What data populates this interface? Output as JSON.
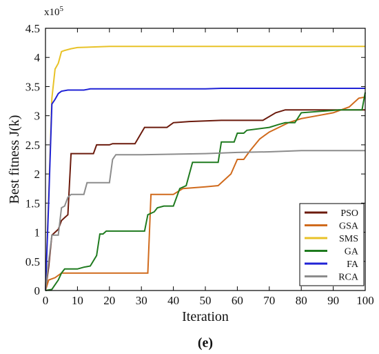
{
  "chart_data": {
    "type": "line",
    "xlabel": "Iteration",
    "ylabel": "Best fitness J(k)",
    "y_multiplier_label": "x10",
    "y_multiplier_exp": "5",
    "panel_label": "(e)",
    "xlim": [
      0,
      100
    ],
    "ylim": [
      0,
      4.5
    ],
    "x_ticks": [
      0,
      10,
      20,
      30,
      40,
      50,
      60,
      70,
      80,
      90,
      100
    ],
    "y_ticks": [
      0,
      0.5,
      1,
      1.5,
      2,
      2.5,
      3,
      3.5,
      4,
      4.5
    ],
    "y_unit_scale": 100000,
    "grid": false,
    "legend_position": "bottom-right",
    "series": [
      {
        "name": "PSO",
        "color": "#6b1a0c",
        "points": [
          [
            0,
            0
          ],
          [
            1,
            0.4
          ],
          [
            2,
            0.95
          ],
          [
            3,
            1.0
          ],
          [
            4,
            1.05
          ],
          [
            5,
            1.2
          ],
          [
            6,
            1.25
          ],
          [
            7,
            1.3
          ],
          [
            8,
            2.35
          ],
          [
            10,
            2.35
          ],
          [
            15,
            2.35
          ],
          [
            16,
            2.5
          ],
          [
            20,
            2.5
          ],
          [
            21,
            2.52
          ],
          [
            28,
            2.52
          ],
          [
            31,
            2.8
          ],
          [
            38,
            2.8
          ],
          [
            40,
            2.88
          ],
          [
            45,
            2.9
          ],
          [
            55,
            2.92
          ],
          [
            68,
            2.92
          ],
          [
            72,
            3.05
          ],
          [
            75,
            3.1
          ],
          [
            90,
            3.1
          ],
          [
            100,
            3.1
          ]
        ]
      },
      {
        "name": "GSA",
        "color": "#d06a1c",
        "points": [
          [
            0,
            0
          ],
          [
            1,
            0.18
          ],
          [
            3,
            0.22
          ],
          [
            5,
            0.3
          ],
          [
            10,
            0.3
          ],
          [
            32,
            0.3
          ],
          [
            33,
            1.65
          ],
          [
            40,
            1.65
          ],
          [
            43,
            1.75
          ],
          [
            50,
            1.78
          ],
          [
            54,
            1.8
          ],
          [
            56,
            1.9
          ],
          [
            58,
            2.0
          ],
          [
            60,
            2.25
          ],
          [
            62,
            2.25
          ],
          [
            64,
            2.4
          ],
          [
            67,
            2.6
          ],
          [
            70,
            2.72
          ],
          [
            73,
            2.8
          ],
          [
            76,
            2.88
          ],
          [
            80,
            2.95
          ],
          [
            85,
            3.0
          ],
          [
            90,
            3.05
          ],
          [
            95,
            3.15
          ],
          [
            98,
            3.3
          ],
          [
            100,
            3.32
          ]
        ]
      },
      {
        "name": "SMS",
        "color": "#e8c227",
        "points": [
          [
            0,
            0
          ],
          [
            1,
            1.6
          ],
          [
            2,
            3.3
          ],
          [
            3,
            3.8
          ],
          [
            4,
            3.9
          ],
          [
            5,
            4.1
          ],
          [
            6,
            4.12
          ],
          [
            8,
            4.15
          ],
          [
            10,
            4.17
          ],
          [
            20,
            4.19
          ],
          [
            100,
            4.19
          ]
        ]
      },
      {
        "name": "GA",
        "color": "#1e7a1e",
        "points": [
          [
            0,
            0
          ],
          [
            2,
            0.02
          ],
          [
            3,
            0.1
          ],
          [
            4,
            0.18
          ],
          [
            5,
            0.3
          ],
          [
            6,
            0.37
          ],
          [
            10,
            0.37
          ],
          [
            12,
            0.4
          ],
          [
            14,
            0.42
          ],
          [
            16,
            0.6
          ],
          [
            17,
            0.97
          ],
          [
            18,
            0.97
          ],
          [
            19,
            1.02
          ],
          [
            31,
            1.02
          ],
          [
            32,
            1.3
          ],
          [
            34,
            1.35
          ],
          [
            35,
            1.42
          ],
          [
            37,
            1.45
          ],
          [
            40,
            1.45
          ],
          [
            42,
            1.75
          ],
          [
            44,
            1.8
          ],
          [
            46,
            2.2
          ],
          [
            54,
            2.2
          ],
          [
            55,
            2.55
          ],
          [
            59,
            2.55
          ],
          [
            60,
            2.7
          ],
          [
            62,
            2.7
          ],
          [
            63,
            2.75
          ],
          [
            70,
            2.8
          ],
          [
            73,
            2.85
          ],
          [
            75,
            2.88
          ],
          [
            78,
            2.88
          ],
          [
            80,
            3.05
          ],
          [
            92,
            3.1
          ],
          [
            99,
            3.1
          ],
          [
            100,
            3.4
          ]
        ]
      },
      {
        "name": "FA",
        "color": "#1f22d6",
        "points": [
          [
            0,
            0
          ],
          [
            1,
            1.5
          ],
          [
            2,
            3.2
          ],
          [
            3,
            3.28
          ],
          [
            4,
            3.38
          ],
          [
            5,
            3.42
          ],
          [
            7,
            3.44
          ],
          [
            12,
            3.44
          ],
          [
            14,
            3.46
          ],
          [
            50,
            3.46
          ],
          [
            55,
            3.47
          ],
          [
            100,
            3.47
          ]
        ]
      },
      {
        "name": "RCA",
        "color": "#8c8c8c",
        "points": [
          [
            0,
            0
          ],
          [
            1,
            0.5
          ],
          [
            2,
            0.95
          ],
          [
            3,
            0.95
          ],
          [
            4,
            0.95
          ],
          [
            5,
            1.42
          ],
          [
            6,
            1.45
          ],
          [
            7,
            1.6
          ],
          [
            8,
            1.65
          ],
          [
            12,
            1.65
          ],
          [
            13,
            1.85
          ],
          [
            20,
            1.85
          ],
          [
            21,
            2.25
          ],
          [
            22,
            2.33
          ],
          [
            30,
            2.33
          ],
          [
            50,
            2.35
          ],
          [
            60,
            2.37
          ],
          [
            70,
            2.38
          ],
          [
            80,
            2.4
          ],
          [
            100,
            2.4
          ]
        ]
      }
    ]
  }
}
